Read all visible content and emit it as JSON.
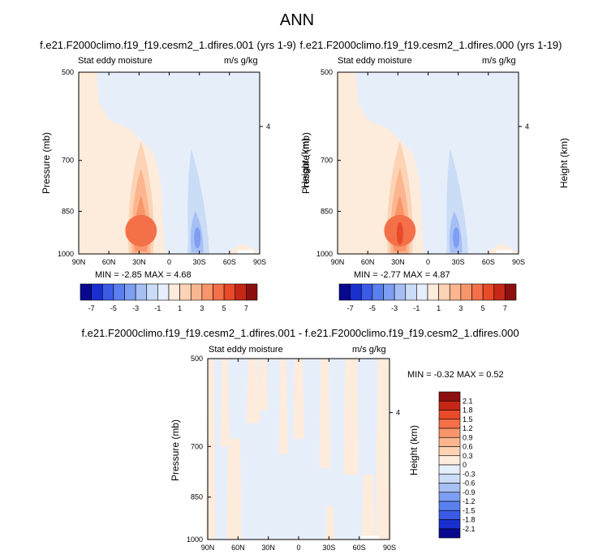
{
  "title": "ANN",
  "panels": [
    {
      "title": "f.e21.F2000climo.f19_f19.cesm2_1.dfires.001 (yrs 1-9)",
      "left_label": "Stat eddy moisture",
      "right_label": "m/s g/kg",
      "ylabel": "Pressure (mb)",
      "ylabel_right": "Height (km)",
      "min_max": "MIN =  -2.85  MAX =   4.68"
    },
    {
      "title": "f.e21.F2000climo.f19_f19.cesm2_1.dfires.000 (yrs 1-19)",
      "left_label": "Stat eddy moisture",
      "right_label": "m/s g/kg",
      "ylabel": "Pressure (mb)",
      "ylabel_right": "Height (km)",
      "min_max": "MIN =  -2.77  MAX =   4.87"
    },
    {
      "title": "f.e21.F2000climo.f19_f19.cesm2_1.dfires.001 - f.e21.F2000climo.f19_f19.cesm2_1.dfires.000",
      "left_label": "Stat eddy moisture",
      "right_label": "m/s g/kg",
      "ylabel": "Pressure (mb)",
      "ylabel_right": "Height (km)",
      "min_max": "MIN =  -0.32  MAX =   0.52"
    }
  ],
  "axes": {
    "x_ticks": [
      "90N",
      "60N",
      "30N",
      "0",
      "30S",
      "60S",
      "90S"
    ],
    "y_ticks": [
      "500",
      "700",
      "850",
      "1000"
    ],
    "y_tick_values": [
      500,
      700,
      850,
      1000
    ],
    "height_ticks": [
      "4"
    ]
  },
  "colorbar_top": {
    "labels": [
      "-7",
      "-5",
      "-3",
      "-1",
      "1",
      "3",
      "5",
      "7"
    ],
    "colors": [
      "#08088f",
      "#1a2fd0",
      "#3b5be6",
      "#5a80f0",
      "#7d9ef2",
      "#a6bff4",
      "#cadcf6",
      "#e6eefa",
      "#fdebdc",
      "#fcd3b5",
      "#fbb690",
      "#f9956a",
      "#f47048",
      "#e84a2a",
      "#c62716",
      "#8d0f0f"
    ]
  },
  "colorbar_bottom": {
    "labels": [
      "2.1",
      "1.8",
      "1.5",
      "1.2",
      "0.9",
      "0.6",
      "0.3",
      "0",
      "-0.3",
      "-0.6",
      "-0.9",
      "-1.2",
      "-1.5",
      "-1.8",
      "-2.1"
    ],
    "colors": [
      "#8d0f0f",
      "#c62716",
      "#e84a2a",
      "#f47048",
      "#f9956a",
      "#fbb690",
      "#fcd3b5",
      "#fdebdc",
      "#e6eefa",
      "#cadcf6",
      "#a6bff4",
      "#7d9ef2",
      "#5a80f0",
      "#3b5be6",
      "#1a2fd0",
      "#08088f"
    ]
  },
  "chart_data": [
    {
      "type": "heatmap",
      "title": "f.e21.F2000climo.f19_f19.cesm2_1.dfires.001 (yrs 1-9)",
      "field": "Stat eddy moisture",
      "units": "m/s g/kg",
      "xlabel": "",
      "ylabel": "Pressure (mb)",
      "x_categories": [
        "90N",
        "60N",
        "30N",
        "0",
        "30S",
        "60S",
        "90S"
      ],
      "ylim": [
        1000,
        500
      ],
      "min": -2.85,
      "max": 4.68,
      "features": [
        {
          "lat": 28,
          "pressure": 900,
          "value": 4.5
        },
        {
          "lat": -25,
          "pressure": 930,
          "value": -2.8
        }
      ]
    },
    {
      "type": "heatmap",
      "title": "f.e21.F2000climo.f19_f19.cesm2_1.dfires.000 (yrs 1-19)",
      "field": "Stat eddy moisture",
      "units": "m/s g/kg",
      "xlabel": "",
      "ylabel": "Pressure (mb)",
      "x_categories": [
        "90N",
        "60N",
        "30N",
        "0",
        "30S",
        "60S",
        "90S"
      ],
      "ylim": [
        1000,
        500
      ],
      "min": -2.77,
      "max": 4.87,
      "features": [
        {
          "lat": 28,
          "pressure": 900,
          "value": 4.8
        },
        {
          "lat": -25,
          "pressure": 930,
          "value": -2.7
        }
      ]
    },
    {
      "type": "heatmap",
      "title": "f.e21.F2000climo.f19_f19.cesm2_1.dfires.001 - f.e21.F2000climo.f19_f19.cesm2_1.dfires.000",
      "field": "Stat eddy moisture",
      "units": "m/s g/kg",
      "xlabel": "",
      "ylabel": "Pressure (mb)",
      "x_categories": [
        "90N",
        "60N",
        "30N",
        "0",
        "30S",
        "60S",
        "90S"
      ],
      "ylim": [
        1000,
        500
      ],
      "min": -0.32,
      "max": 0.52
    }
  ]
}
